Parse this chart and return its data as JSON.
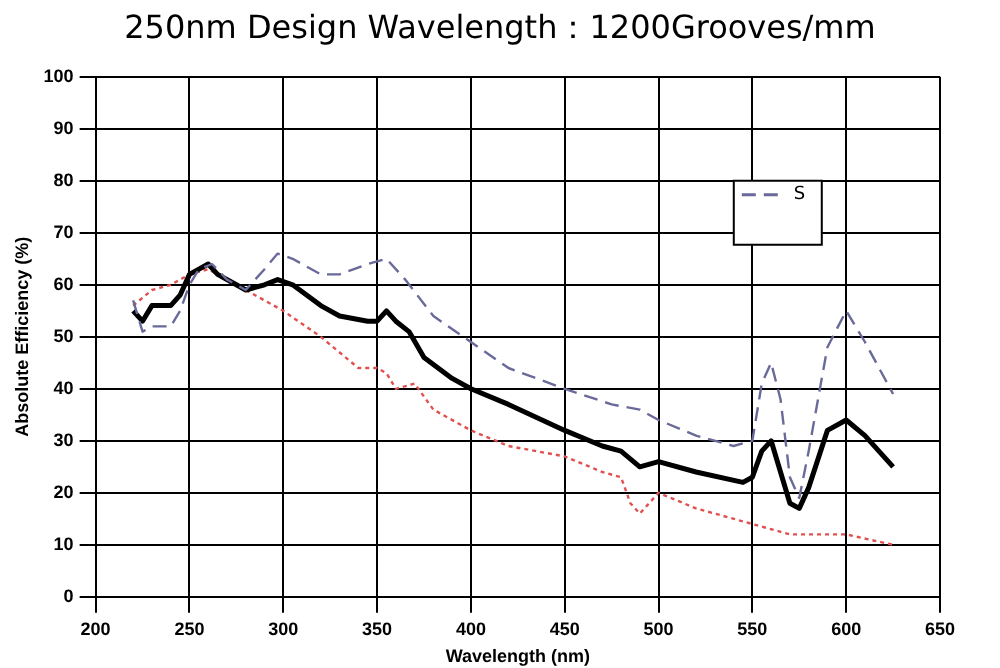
{
  "chart_data": {
    "type": "line",
    "title": "250nm Design Wavelength：1200Grooves/mm",
    "xlabel": "Wavelength (nm)",
    "ylabel": "Absolute Efficiency (%)",
    "xlim": [
      200,
      650
    ],
    "xticks": [
      200,
      250,
      300,
      350,
      400,
      450,
      500,
      550,
      600,
      650
    ],
    "ylim": [
      0,
      100
    ],
    "yticks": [
      0,
      10,
      20,
      30,
      40,
      50,
      60,
      70,
      80,
      90,
      100
    ],
    "grid": true,
    "legend": "top right",
    "marker": "none",
    "series": [
      {
        "name": "S",
        "color": "#6a6a9a",
        "line_style": "dashed",
        "x": [
          220,
          225,
          230,
          240,
          245,
          250,
          255,
          262,
          270,
          280,
          290,
          297,
          305,
          320,
          330,
          345,
          355,
          365,
          380,
          400,
          420,
          450,
          475,
          490,
          500,
          520,
          540,
          550,
          555,
          560,
          565,
          570,
          575,
          580,
          590,
          600,
          610,
          625
        ],
        "values": [
          57,
          51,
          52,
          52,
          55,
          60,
          63,
          64,
          61,
          59,
          63,
          66,
          65,
          62,
          62,
          64,
          65,
          61,
          54,
          49,
          44,
          40,
          37,
          36,
          34,
          31,
          29,
          30,
          41,
          45,
          38,
          23,
          19,
          28,
          48,
          55,
          49,
          39
        ]
      },
      {
        "color": "#000000",
        "line_style": "solid",
        "x": [
          220,
          225,
          230,
          240,
          245,
          250,
          260,
          265,
          275,
          280,
          290,
          297,
          305,
          320,
          330,
          345,
          350,
          355,
          360,
          367,
          375,
          390,
          400,
          420,
          450,
          470,
          480,
          490,
          500,
          520,
          545,
          550,
          555,
          560,
          565,
          570,
          575,
          580,
          590,
          600,
          610,
          625
        ],
        "values": [
          55,
          53,
          56,
          56,
          58,
          62,
          64,
          62,
          60,
          59,
          60,
          61,
          60,
          56,
          54,
          53,
          53,
          55,
          53,
          51,
          46,
          42,
          40,
          37,
          32,
          29,
          28,
          25,
          26,
          24,
          22,
          23,
          28,
          30,
          24,
          18,
          17,
          21,
          32,
          34,
          31,
          25
        ]
      },
      {
        "color": "#e05050",
        "line_style": "dotted",
        "x": [
          220,
          230,
          240,
          250,
          260,
          270,
          280,
          300,
          320,
          340,
          350,
          355,
          360,
          370,
          380,
          400,
          420,
          450,
          470,
          480,
          485,
          490,
          495,
          500,
          520,
          550,
          570,
          600,
          625
        ],
        "values": [
          56,
          59,
          60,
          62,
          63,
          61,
          59,
          55,
          50,
          44,
          44,
          43,
          40,
          41,
          36,
          32,
          29,
          27,
          24,
          23,
          18,
          16,
          18,
          20,
          17,
          14,
          12,
          12,
          10
        ]
      }
    ]
  }
}
